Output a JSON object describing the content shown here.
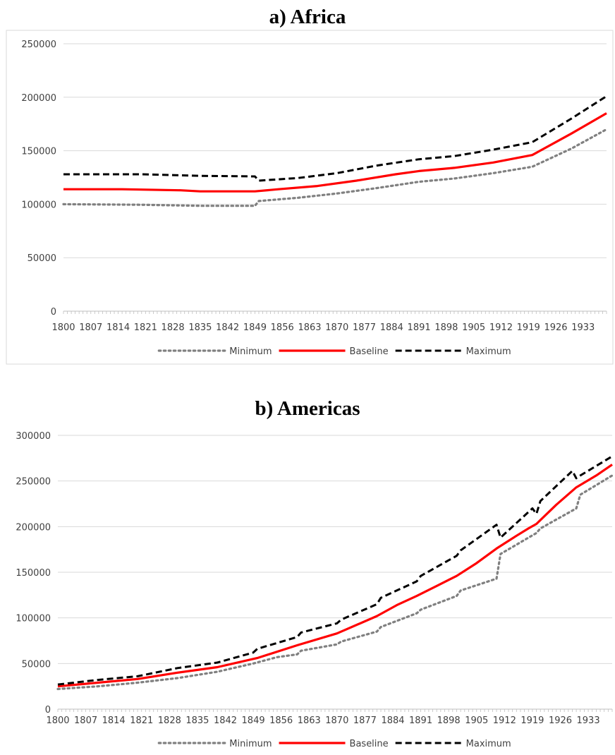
{
  "chart_data": [
    {
      "type": "line",
      "title": "a) Africa",
      "xlabel": "",
      "ylabel": "",
      "xlim": [
        1800,
        1939
      ],
      "ylim": [
        0,
        250000
      ],
      "yticks": [
        0,
        50000,
        100000,
        150000,
        200000,
        250000
      ],
      "xticks": [
        1800,
        1807,
        1814,
        1821,
        1828,
        1835,
        1842,
        1849,
        1856,
        1863,
        1870,
        1877,
        1884,
        1891,
        1898,
        1905,
        1912,
        1919,
        1926,
        1933
      ],
      "grid": "horizontal",
      "legend": "bottom",
      "series": [
        {
          "name": "Minimum",
          "color": "#808080",
          "style": "dotted",
          "x": [
            1800,
            1820,
            1835,
            1849,
            1850,
            1860,
            1870,
            1880,
            1891,
            1900,
            1910,
            1920,
            1930,
            1939
          ],
          "y": [
            100000,
            99500,
            98500,
            98500,
            103000,
            106000,
            110000,
            115000,
            121000,
            124000,
            129000,
            135000,
            152000,
            170000
          ]
        },
        {
          "name": "Baseline",
          "color": "#ff0000",
          "style": "solid",
          "x": [
            1800,
            1815,
            1830,
            1835,
            1849,
            1855,
            1865,
            1875,
            1885,
            1891,
            1900,
            1910,
            1920,
            1930,
            1939
          ],
          "y": [
            114000,
            114000,
            113000,
            112000,
            112000,
            114000,
            117000,
            122000,
            128000,
            131000,
            134000,
            139000,
            146000,
            166000,
            185000
          ]
        },
        {
          "name": "Maximum",
          "color": "#000000",
          "style": "dashed",
          "x": [
            1800,
            1820,
            1835,
            1849,
            1850,
            1860,
            1870,
            1880,
            1891,
            1900,
            1910,
            1920,
            1930,
            1939
          ],
          "y": [
            128000,
            128000,
            126500,
            126000,
            122000,
            124500,
            129000,
            136000,
            142000,
            145000,
            151000,
            158000,
            180000,
            201000
          ]
        }
      ]
    },
    {
      "type": "line",
      "title": "b) Americas",
      "xlabel": "",
      "ylabel": "",
      "xlim": [
        1800,
        1939
      ],
      "ylim": [
        0,
        300000
      ],
      "yticks": [
        0,
        50000,
        100000,
        150000,
        200000,
        250000,
        300000
      ],
      "xticks": [
        1800,
        1807,
        1814,
        1821,
        1828,
        1835,
        1842,
        1849,
        1856,
        1863,
        1870,
        1877,
        1884,
        1891,
        1898,
        1905,
        1912,
        1919,
        1926,
        1933
      ],
      "grid": "horizontal",
      "legend": "bottom",
      "series": [
        {
          "name": "Minimum",
          "color": "#808080",
          "style": "dotted",
          "x": [
            1800,
            1810,
            1820,
            1830,
            1840,
            1849,
            1855,
            1860,
            1861,
            1870,
            1871,
            1880,
            1881,
            1890,
            1891,
            1900,
            1901,
            1910,
            1911,
            1920,
            1921,
            1930,
            1931,
            1939
          ],
          "y": [
            22000,
            25000,
            29000,
            34000,
            41000,
            50000,
            57000,
            60000,
            64000,
            71000,
            74000,
            85000,
            90000,
            105000,
            109000,
            124000,
            130000,
            143000,
            170000,
            193000,
            198000,
            220000,
            235000,
            256000
          ]
        },
        {
          "name": "Baseline",
          "color": "#ff0000",
          "style": "solid",
          "x": [
            1800,
            1810,
            1820,
            1830,
            1840,
            1850,
            1860,
            1870,
            1880,
            1885,
            1890,
            1895,
            1900,
            1905,
            1910,
            1915,
            1918,
            1920,
            1925,
            1930,
            1935,
            1939
          ],
          "y": [
            25000,
            29000,
            33000,
            40000,
            46000,
            56000,
            70000,
            83000,
            102000,
            114000,
            124000,
            135000,
            146000,
            160000,
            176000,
            190000,
            198000,
            203000,
            224000,
            243000,
            256000,
            268000
          ]
        },
        {
          "name": "Maximum",
          "color": "#000000",
          "style": "dashed",
          "x": [
            1800,
            1810,
            1820,
            1830,
            1840,
            1849,
            1850,
            1860,
            1861,
            1870,
            1871,
            1880,
            1881,
            1890,
            1891,
            1900,
            1901,
            1910,
            1911,
            1919,
            1920,
            1921,
            1929,
            1930,
            1931,
            1939
          ],
          "y": [
            27000,
            32000,
            36000,
            45000,
            51000,
            62000,
            66000,
            79000,
            84000,
            94000,
            98000,
            115000,
            122000,
            140000,
            146000,
            168000,
            174000,
            202000,
            188000,
            220000,
            214000,
            228000,
            261000,
            253000,
            256000,
            277000
          ]
        }
      ]
    }
  ]
}
